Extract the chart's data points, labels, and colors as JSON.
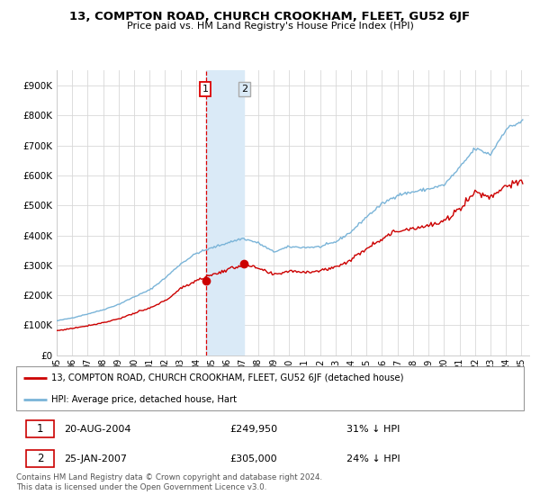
{
  "title": "13, COMPTON ROAD, CHURCH CROOKHAM, FLEET, GU52 6JF",
  "subtitle": "Price paid vs. HM Land Registry's House Price Index (HPI)",
  "ylim": [
    0,
    950000
  ],
  "yticks": [
    0,
    100000,
    200000,
    300000,
    400000,
    500000,
    600000,
    700000,
    800000,
    900000
  ],
  "ytick_labels": [
    "£0",
    "£100K",
    "£200K",
    "£300K",
    "£400K",
    "£500K",
    "£600K",
    "£700K",
    "£800K",
    "£900K"
  ],
  "hpi_color": "#7ab4d8",
  "price_color": "#cc0000",
  "shaded_color": "#daeaf7",
  "vline_color": "#dd0000",
  "transaction1": {
    "date_num": 2004.64,
    "price": 249950,
    "label": "1",
    "date_str": "20-AUG-2004",
    "pct": "31% ↓ HPI"
  },
  "transaction2": {
    "date_num": 2007.07,
    "price": 305000,
    "label": "2",
    "date_str": "25-JAN-2007",
    "pct": "24% ↓ HPI"
  },
  "legend_price_label": "13, COMPTON ROAD, CHURCH CROOKHAM, FLEET, GU52 6JF (detached house)",
  "legend_hpi_label": "HPI: Average price, detached house, Hart",
  "footer": "Contains HM Land Registry data © Crown copyright and database right 2024.\nThis data is licensed under the Open Government Licence v3.0.",
  "xmin": 1995.0,
  "xmax": 2025.5,
  "xticks": [
    1995,
    1996,
    1997,
    1998,
    1999,
    2000,
    2001,
    2002,
    2003,
    2004,
    2005,
    2006,
    2007,
    2008,
    2009,
    2010,
    2011,
    2012,
    2013,
    2014,
    2015,
    2016,
    2017,
    2018,
    2019,
    2020,
    2021,
    2022,
    2023,
    2024,
    2025
  ],
  "hpi_base_prices": {
    "1995": 115000,
    "1996": 125000,
    "1997": 138000,
    "1998": 152000,
    "1999": 170000,
    "2000": 195000,
    "2001": 218000,
    "2002": 258000,
    "2003": 305000,
    "2004": 340000,
    "2005": 358000,
    "2006": 375000,
    "2007": 390000,
    "2008": 375000,
    "2009": 345000,
    "2010": 362000,
    "2011": 360000,
    "2012": 362000,
    "2013": 378000,
    "2014": 412000,
    "2015": 462000,
    "2016": 505000,
    "2017": 535000,
    "2018": 545000,
    "2019": 555000,
    "2020": 568000,
    "2021": 625000,
    "2022": 690000,
    "2023": 670000,
    "2024": 755000,
    "2025": 780000
  },
  "price_base_prices": {
    "1995": 82000,
    "1996": 90000,
    "1997": 99000,
    "1998": 109000,
    "1999": 122000,
    "2000": 140000,
    "2001": 157000,
    "2002": 182000,
    "2003": 222000,
    "2004": 250000,
    "2005": 268000,
    "2006": 285000,
    "2007": 302000,
    "2008": 290000,
    "2009": 268000,
    "2010": 282000,
    "2011": 278000,
    "2012": 282000,
    "2013": 295000,
    "2014": 318000,
    "2015": 358000,
    "2016": 390000,
    "2017": 415000,
    "2018": 425000,
    "2019": 432000,
    "2020": 445000,
    "2021": 490000,
    "2022": 545000,
    "2023": 528000,
    "2024": 568000,
    "2025": 575000
  }
}
